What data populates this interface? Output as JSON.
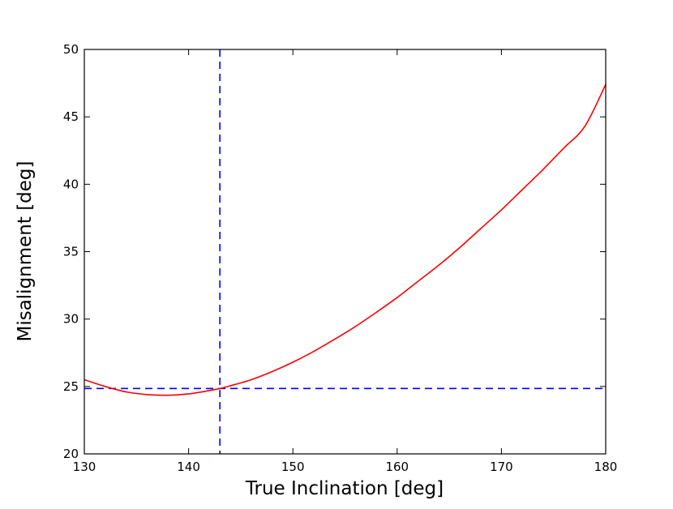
{
  "chart_data": {
    "type": "line",
    "title": "",
    "xlabel": "True Inclination [deg]",
    "ylabel": "Misalignment [deg]",
    "xlim": [
      130,
      180
    ],
    "ylim": [
      20,
      50
    ],
    "xticks": [
      "130",
      "140",
      "150",
      "160",
      "170",
      "180"
    ],
    "yticks": [
      "20",
      "25",
      "30",
      "35",
      "40",
      "45",
      "50"
    ],
    "grid": false,
    "legend": "none",
    "series": [
      {
        "color": "#ff0000",
        "style": "solid",
        "x": [
          130,
          132,
          134,
          136,
          138,
          140,
          142,
          143,
          144,
          146,
          148,
          150,
          152,
          154,
          156,
          158,
          160,
          162,
          164,
          166,
          168,
          170,
          172,
          174,
          176,
          178,
          180
        ],
        "y": [
          25.5,
          25.0,
          24.6,
          24.4,
          24.35,
          24.45,
          24.7,
          24.85,
          25.05,
          25.5,
          26.1,
          26.8,
          27.6,
          28.5,
          29.45,
          30.5,
          31.6,
          32.8,
          34.0,
          35.3,
          36.7,
          38.1,
          39.6,
          41.1,
          42.7,
          44.3,
          47.4
        ]
      }
    ],
    "reference_lines": [
      {
        "orientation": "vertical",
        "x": 143,
        "color": "#0000ff",
        "style": "dashed"
      },
      {
        "orientation": "horizontal",
        "y": 24.85,
        "color": "#0000ff",
        "style": "dashed"
      }
    ]
  }
}
